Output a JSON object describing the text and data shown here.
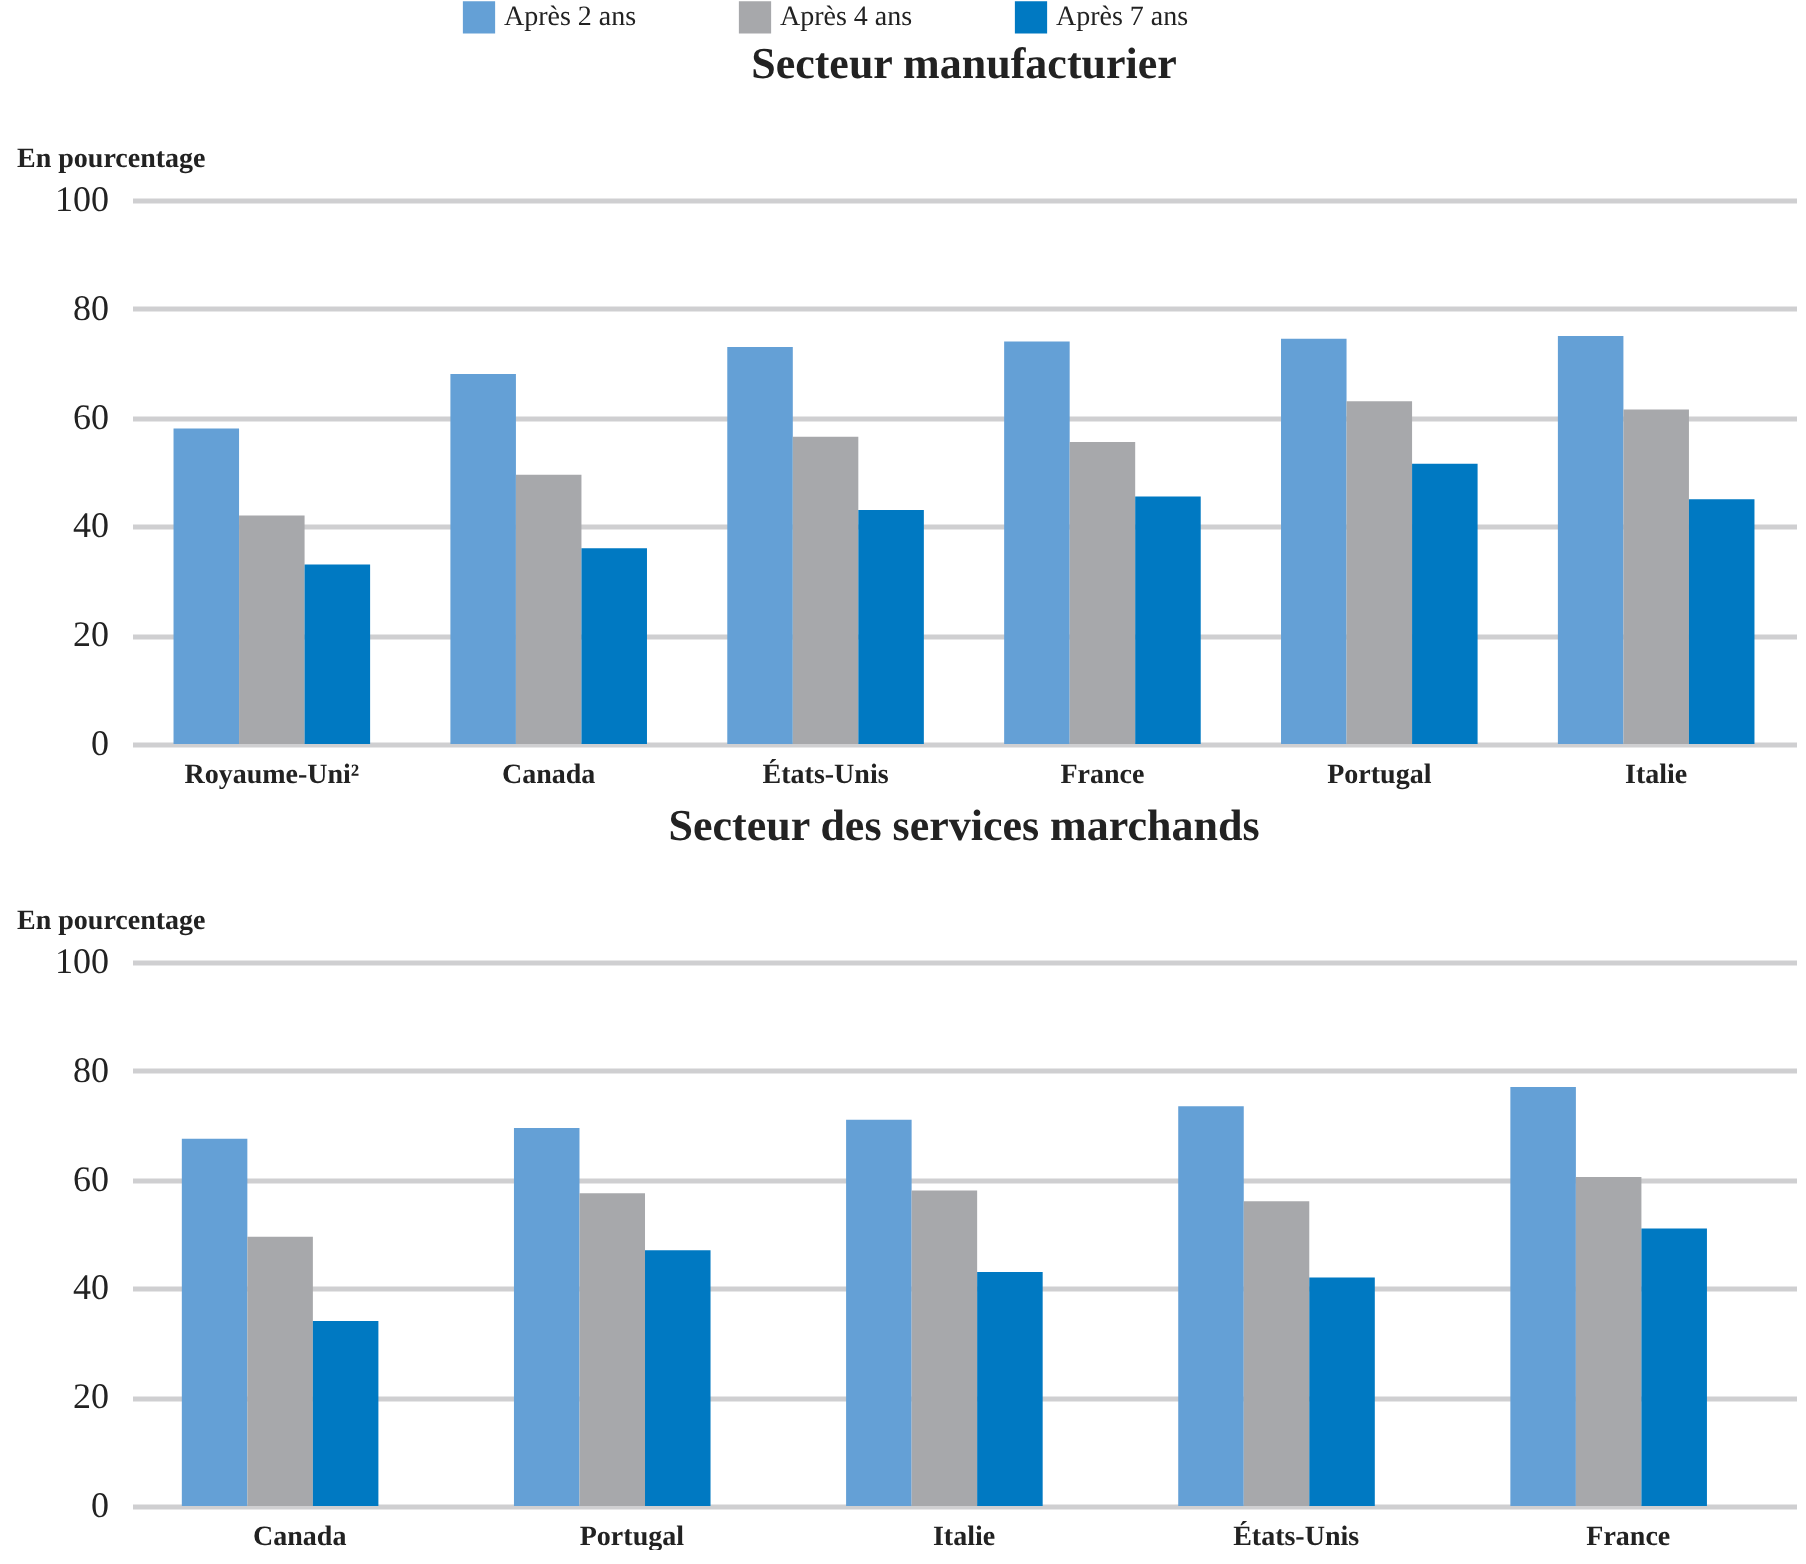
{
  "chart_data": [
    {
      "type": "bar",
      "title": "Secteur manufacturier",
      "ylabel": "En pourcentage",
      "categories": [
        "Royaume-Uni²",
        "Canada",
        "États-Unis",
        "France",
        "Portugal",
        "Italie"
      ],
      "series": [
        {
          "name": "Après 2 ans",
          "color": "#64a0d6",
          "values": [
            58,
            68,
            73,
            74,
            74.5,
            75
          ]
        },
        {
          "name": "Après 4 ans",
          "color": "#a7a8ab",
          "values": [
            42,
            49.5,
            56.5,
            55.5,
            63,
            61.5
          ]
        },
        {
          "name": "Après 7 ans",
          "color": "#0079c2",
          "values": [
            33,
            36,
            43,
            45.5,
            51.5,
            45
          ]
        }
      ],
      "ylim": [
        0,
        100
      ],
      "yticks": [
        0,
        20,
        40,
        60,
        80,
        100
      ],
      "grid": "y",
      "legend": "top"
    },
    {
      "type": "bar",
      "title": "Secteur des services marchands",
      "ylabel": "En pourcentage",
      "categories": [
        "Canada",
        "Portugal",
        "Italie",
        "États-Unis",
        "France"
      ],
      "series": [
        {
          "name": "Après 2 ans",
          "color": "#64a0d6",
          "values": [
            67.5,
            69.5,
            71,
            73.5,
            77
          ]
        },
        {
          "name": "Après 4 ans",
          "color": "#a7a8ab",
          "values": [
            49.5,
            57.5,
            58,
            56,
            60.5
          ]
        },
        {
          "name": "Après 7 ans",
          "color": "#0079c2",
          "values": [
            34,
            47,
            43,
            42,
            51
          ]
        }
      ],
      "ylim": [
        0,
        100
      ],
      "yticks": [
        0,
        20,
        40,
        60,
        80,
        100
      ],
      "grid": "y"
    }
  ]
}
